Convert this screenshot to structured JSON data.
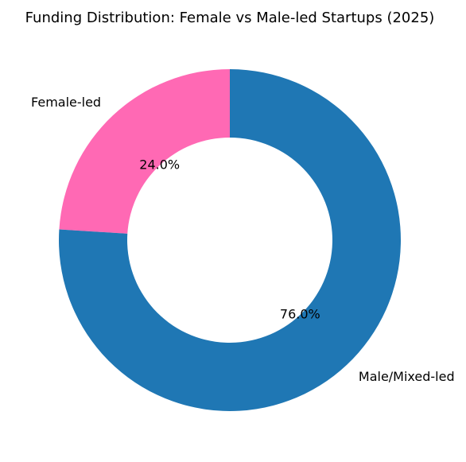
{
  "chart_data": {
    "type": "pie",
    "variant": "donut",
    "title": "Funding Distribution: Female vs Male-led Startups (2025)",
    "categories": [
      "Female-led",
      "Male/Mixed-led"
    ],
    "values": [
      24.0,
      76.0
    ],
    "percent_labels": [
      "24.0%",
      "76.0%"
    ],
    "colors": [
      "#ff69b4",
      "#1f77b4"
    ],
    "start_angle_deg": 90,
    "direction": "counterclockwise",
    "legend": "none"
  }
}
